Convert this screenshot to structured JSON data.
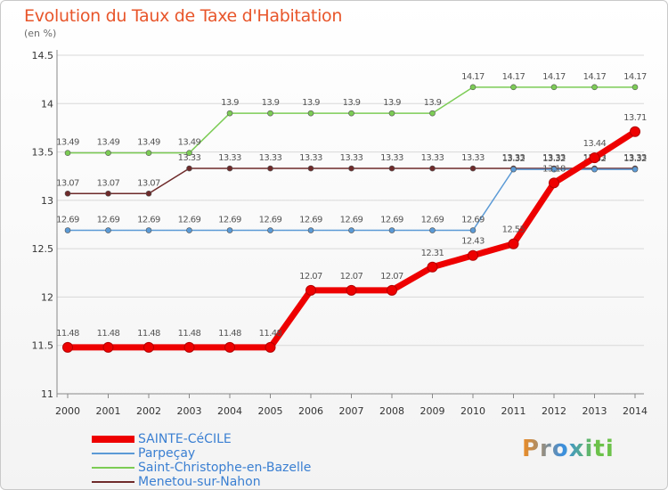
{
  "title": "Evolution du Taux de Taxe d'Habitation",
  "unit": "(en %)",
  "brand": "Proxiti",
  "colors": {
    "title": "#e8552a",
    "grid": "#d8d8d8",
    "axis": "#888888"
  },
  "chart_data": {
    "type": "line",
    "title": "Evolution du Taux de Taxe d'Habitation",
    "ylabel": "(en %)",
    "xlabel": "",
    "ylim": [
      11,
      14.5
    ],
    "yticks": [
      11,
      11.5,
      12,
      12.5,
      13,
      13.5,
      14,
      14.5
    ],
    "ytick_labels": [
      "11",
      "11.5",
      "12",
      "12.5",
      "13",
      "13.5",
      "14",
      "14.5"
    ],
    "x": [
      "2000",
      "2001",
      "2002",
      "2003",
      "2004",
      "2005",
      "2006",
      "2007",
      "2008",
      "2009",
      "2010",
      "2011",
      "2012",
      "2013",
      "2014"
    ],
    "legend_position": "bottom-left",
    "series": [
      {
        "name": "Saint-Christophe-en-Bazelle",
        "color": "#7ccc55",
        "values": [
          13.49,
          13.49,
          13.49,
          13.49,
          13.9,
          13.9,
          13.9,
          13.9,
          13.9,
          13.9,
          14.17,
          14.17,
          14.17,
          14.17,
          14.17
        ],
        "labels": [
          "13.49",
          "13.49",
          "13.49",
          "13.49",
          "13.9",
          "13.9",
          "13.9",
          "13.9",
          "13.9",
          "13.9",
          "14.17",
          "14.17",
          "14.17",
          "14.17",
          "14.17"
        ]
      },
      {
        "name": "Menetou-sur-Nahon",
        "color": "#6e2a2a",
        "values": [
          13.07,
          13.07,
          13.07,
          13.33,
          13.33,
          13.33,
          13.33,
          13.33,
          13.33,
          13.33,
          13.33,
          13.33,
          13.33,
          13.33,
          13.33
        ],
        "labels": [
          "13.07",
          "13.07",
          "13.07",
          "13.33",
          "13.33",
          "13.33",
          "13.33",
          "13.33",
          "13.33",
          "13.33",
          "13.33",
          "13.33",
          "13.33",
          "13.33",
          "13.33"
        ]
      },
      {
        "name": "Parpeçay",
        "color": "#5b9ad6",
        "values": [
          12.69,
          12.69,
          12.69,
          12.69,
          12.69,
          12.69,
          12.69,
          12.69,
          12.69,
          12.69,
          12.69,
          13.32,
          13.32,
          13.32,
          13.32
        ],
        "labels": [
          "12.69",
          "12.69",
          "12.69",
          "12.69",
          "12.69",
          "12.69",
          "12.69",
          "12.69",
          "12.69",
          "12.69",
          "12.69",
          "13.32",
          "13.32",
          "13.32",
          "13.32"
        ]
      },
      {
        "name": "SAINTE-CéCILE",
        "color": "#ee0000",
        "values": [
          11.48,
          11.48,
          11.48,
          11.48,
          11.48,
          11.48,
          12.07,
          12.07,
          12.07,
          12.31,
          12.43,
          12.55,
          13.18,
          13.44,
          13.71
        ],
        "labels": [
          "11.48",
          "11.48",
          "11.48",
          "11.48",
          "11.48",
          "11.48",
          "12.07",
          "12.07",
          "12.07",
          "12.31",
          "12.43",
          "12.55",
          "13.18",
          "13.44",
          "13.71"
        ]
      }
    ]
  },
  "legend": [
    {
      "label": "SAINTE-CéCILE",
      "color": "#ee0000"
    },
    {
      "label": "Parpeçay",
      "color": "#5b9ad6"
    },
    {
      "label": "Saint-Christophe-en-Bazelle",
      "color": "#7ccc55"
    },
    {
      "label": "Menetou-sur-Nahon",
      "color": "#6e2a2a"
    }
  ]
}
